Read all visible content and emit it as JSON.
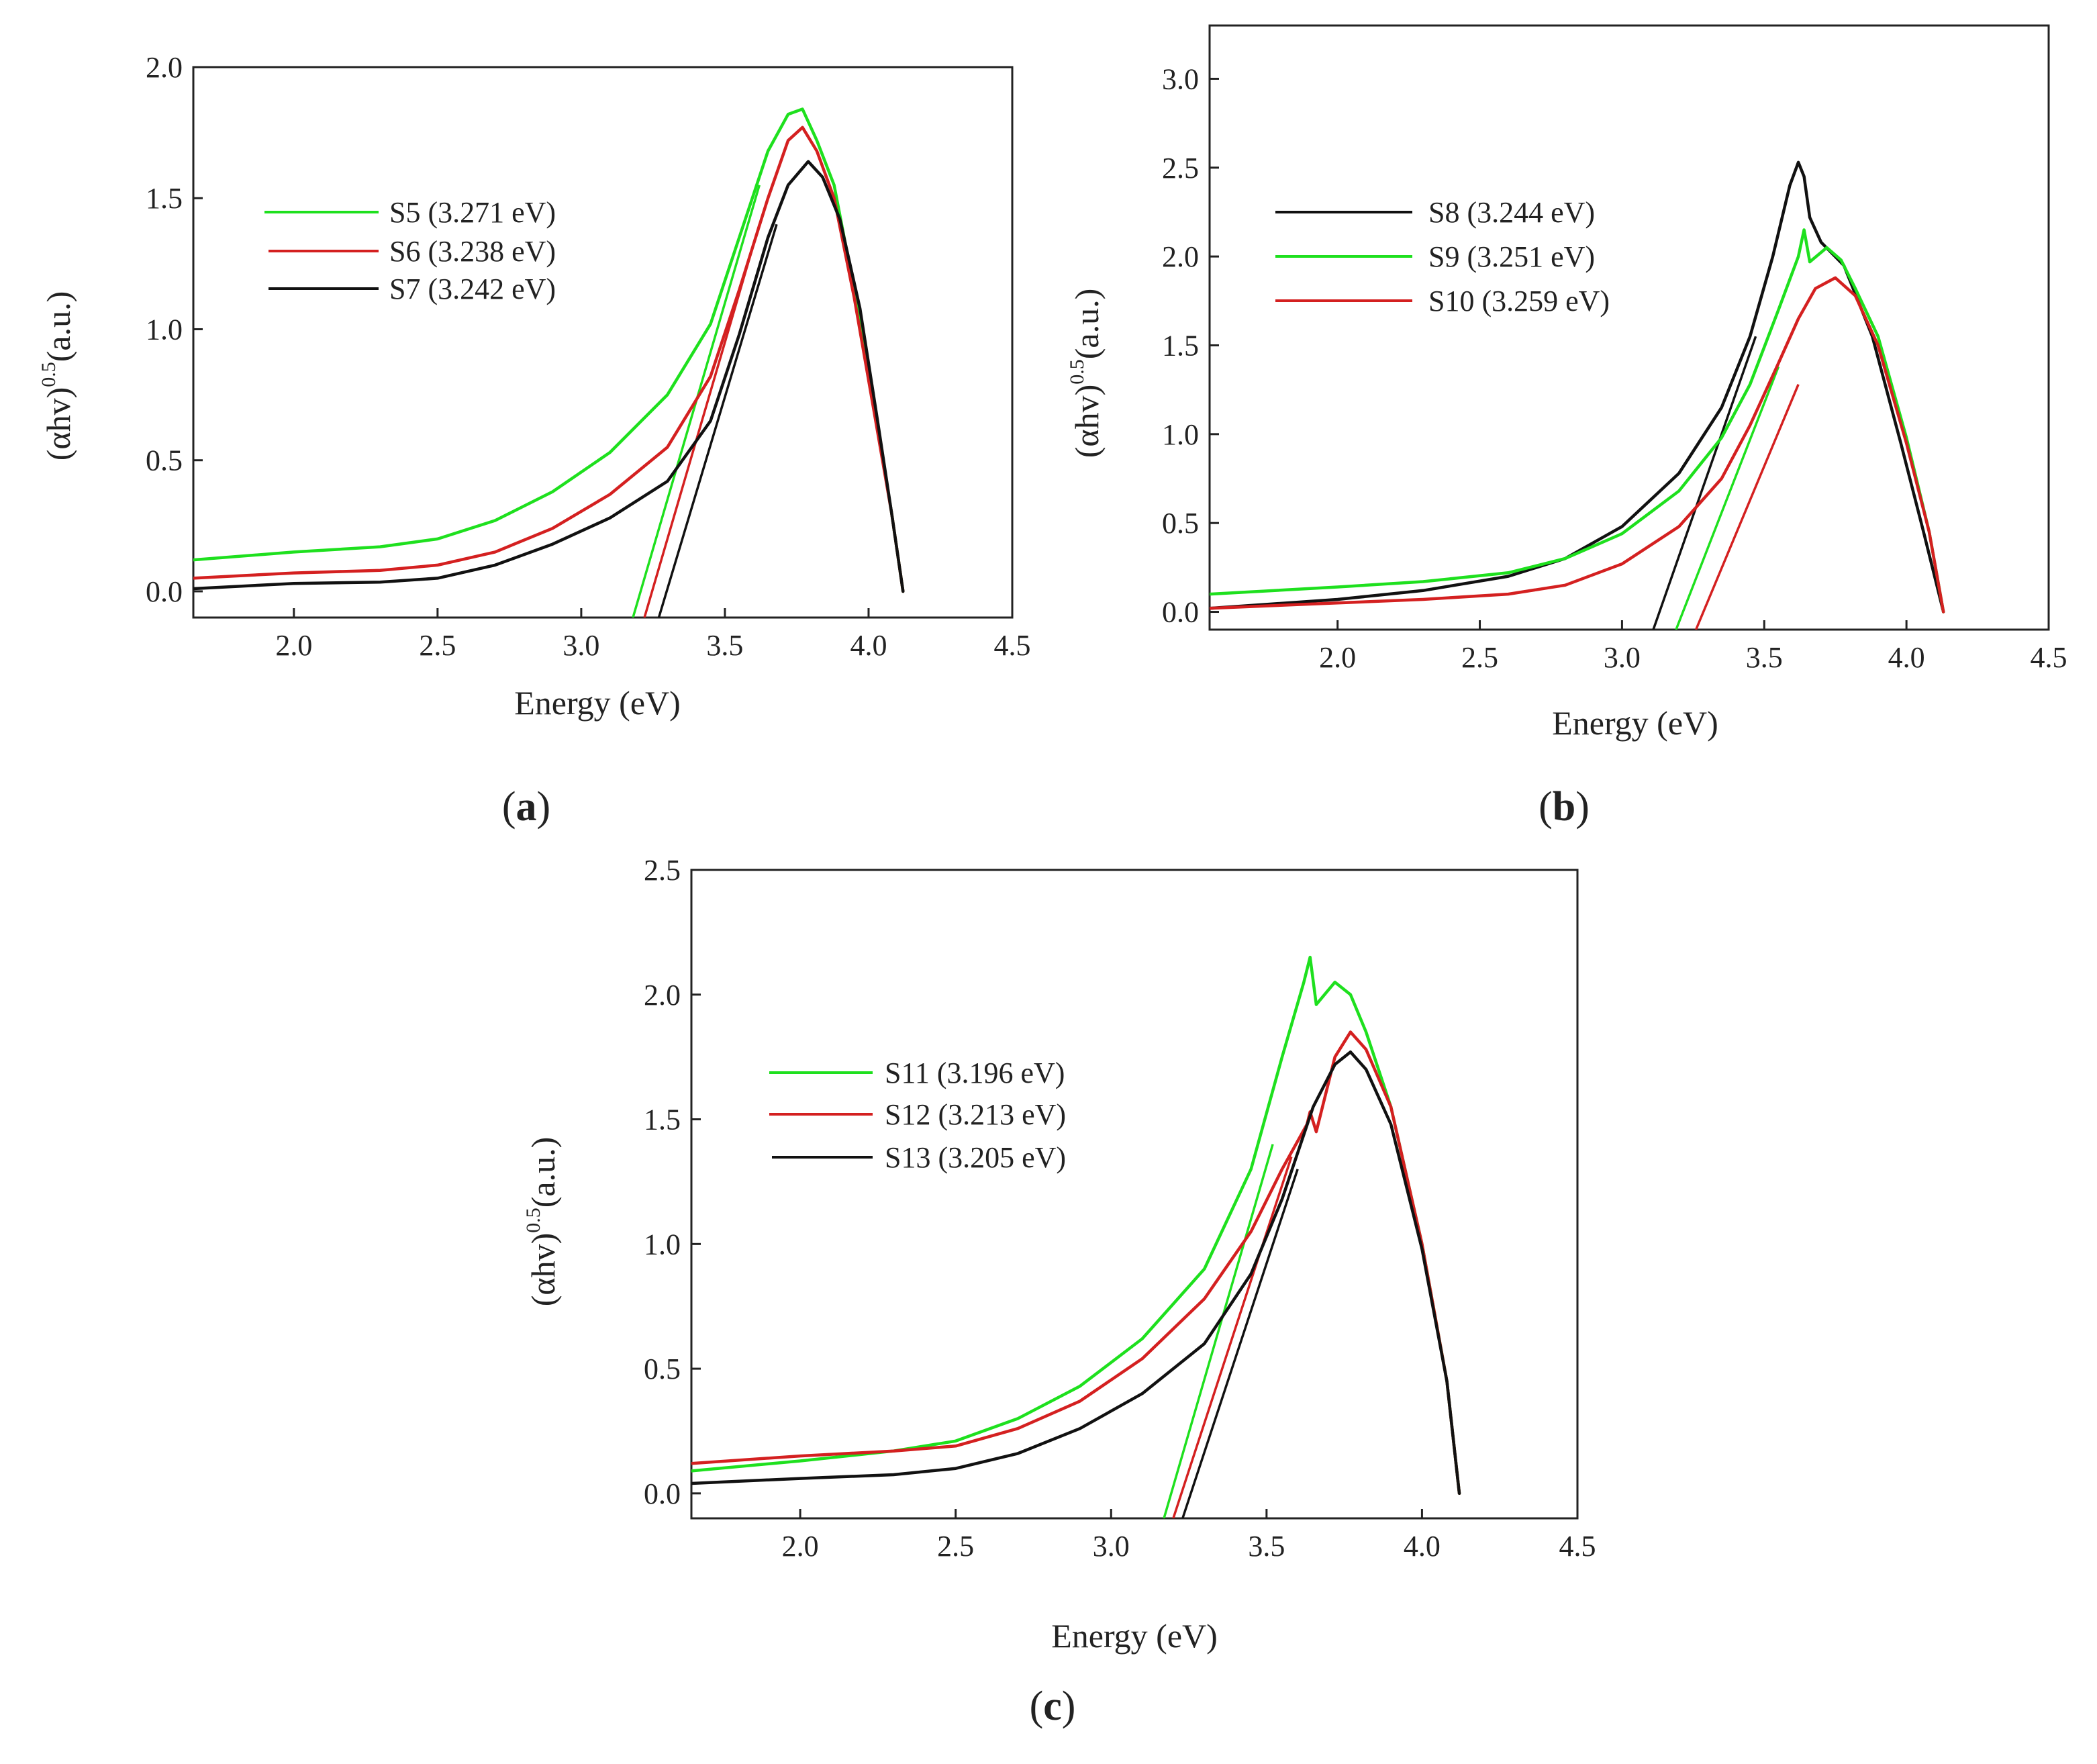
{
  "colors": {
    "green": "#1ee01e",
    "red": "#d42020",
    "black": "#111111",
    "axis": "#222222"
  },
  "chart_data": [
    {
      "id": "a",
      "type": "line",
      "panel_label": {
        "open": "(",
        "letter": "a",
        "close": ")"
      },
      "xlabel": "Energy (eV)",
      "ylabel": {
        "main": "(αhv)",
        "sup": "0.5",
        "tail": "(a.u.)"
      },
      "xlim": [
        1.65,
        4.5
      ],
      "ylim": [
        -0.1,
        2.0
      ],
      "xticks": [
        2.0,
        2.5,
        3.0,
        3.5,
        4.0,
        4.5
      ],
      "yticks": [
        0.0,
        0.5,
        1.0,
        1.5,
        2.0
      ],
      "legend_position": "upper-left",
      "series": [
        {
          "name": "S5 (3.271 eV)",
          "color": "#1ee01e",
          "x": [
            1.65,
            2.0,
            2.3,
            2.5,
            2.7,
            2.9,
            3.1,
            3.3,
            3.45,
            3.55,
            3.65,
            3.72,
            3.77,
            3.82,
            3.88,
            3.95,
            4.02,
            4.08,
            4.12
          ],
          "y": [
            0.12,
            0.15,
            0.17,
            0.2,
            0.27,
            0.38,
            0.53,
            0.75,
            1.02,
            1.35,
            1.68,
            1.82,
            1.84,
            1.72,
            1.55,
            1.15,
            0.7,
            0.3,
            0.0
          ]
        },
        {
          "name": "S6 (3.238 eV)",
          "color": "#d42020",
          "x": [
            1.65,
            2.0,
            2.3,
            2.5,
            2.7,
            2.9,
            3.1,
            3.3,
            3.45,
            3.55,
            3.65,
            3.72,
            3.77,
            3.82,
            3.88,
            3.95,
            4.02,
            4.08,
            4.12
          ],
          "y": [
            0.05,
            0.07,
            0.08,
            0.1,
            0.15,
            0.24,
            0.37,
            0.55,
            0.82,
            1.15,
            1.5,
            1.72,
            1.77,
            1.68,
            1.5,
            1.12,
            0.68,
            0.3,
            0.0
          ]
        },
        {
          "name": "S7 (3.242 eV)",
          "color": "#111111",
          "x": [
            1.65,
            2.0,
            2.3,
            2.5,
            2.7,
            2.9,
            3.1,
            3.3,
            3.45,
            3.55,
            3.65,
            3.72,
            3.79,
            3.84,
            3.9,
            3.97,
            4.03,
            4.08,
            4.12
          ],
          "y": [
            0.01,
            0.03,
            0.035,
            0.05,
            0.1,
            0.18,
            0.28,
            0.42,
            0.65,
            0.98,
            1.35,
            1.55,
            1.64,
            1.58,
            1.42,
            1.08,
            0.66,
            0.3,
            0.0
          ]
        }
      ],
      "fit_lines": [
        {
          "color": "#1ee01e",
          "x": [
            3.18,
            3.62
          ],
          "y": [
            -0.1,
            1.55
          ]
        },
        {
          "color": "#d42020",
          "x": [
            3.22,
            3.62
          ],
          "y": [
            -0.1,
            1.4
          ]
        },
        {
          "color": "#111111",
          "x": [
            3.27,
            3.68
          ],
          "y": [
            -0.1,
            1.4
          ]
        }
      ]
    },
    {
      "id": "b",
      "type": "line",
      "panel_label": {
        "open": "(",
        "letter": "b",
        "close": ")"
      },
      "xlabel": "Energy (eV)",
      "ylabel": {
        "main": "(αhv)",
        "sup": "0.5",
        "tail": "(a.u.)"
      },
      "xlim": [
        1.55,
        4.5
      ],
      "ylim": [
        -0.1,
        3.3
      ],
      "xticks": [
        2.0,
        2.5,
        3.0,
        3.5,
        4.0,
        4.5
      ],
      "yticks": [
        0.0,
        0.5,
        1.0,
        1.5,
        2.0,
        2.5,
        3.0
      ],
      "legend_position": "upper-left",
      "series": [
        {
          "name": "S8 (3.244 eV)",
          "color": "#111111",
          "x": [
            1.55,
            2.0,
            2.3,
            2.6,
            2.8,
            3.0,
            3.2,
            3.35,
            3.45,
            3.53,
            3.59,
            3.62,
            3.64,
            3.66,
            3.7,
            3.78,
            3.88,
            3.98,
            4.06,
            4.13
          ],
          "y": [
            0.02,
            0.07,
            0.12,
            0.2,
            0.3,
            0.48,
            0.78,
            1.15,
            1.55,
            2.0,
            2.4,
            2.53,
            2.45,
            2.22,
            2.08,
            1.95,
            1.55,
            0.95,
            0.45,
            0.0
          ]
        },
        {
          "name": "S9 (3.251 eV)",
          "color": "#1ee01e",
          "x": [
            1.55,
            2.0,
            2.3,
            2.6,
            2.8,
            3.0,
            3.2,
            3.35,
            3.45,
            3.55,
            3.62,
            3.64,
            3.66,
            3.72,
            3.77,
            3.82,
            3.9,
            4.0,
            4.08,
            4.13
          ],
          "y": [
            0.1,
            0.14,
            0.17,
            0.22,
            0.3,
            0.44,
            0.68,
            0.98,
            1.28,
            1.7,
            2.0,
            2.15,
            1.97,
            2.05,
            1.98,
            1.82,
            1.55,
            0.98,
            0.45,
            0.0
          ]
        },
        {
          "name": "S10 (3.259 eV)",
          "color": "#d42020",
          "x": [
            1.55,
            2.0,
            2.3,
            2.6,
            2.8,
            3.0,
            3.2,
            3.35,
            3.45,
            3.55,
            3.62,
            3.68,
            3.75,
            3.82,
            3.9,
            4.0,
            4.08,
            4.13
          ],
          "y": [
            0.02,
            0.05,
            0.07,
            0.1,
            0.15,
            0.27,
            0.48,
            0.75,
            1.05,
            1.4,
            1.65,
            1.82,
            1.88,
            1.78,
            1.5,
            0.95,
            0.45,
            0.0
          ]
        }
      ],
      "fit_lines": [
        {
          "color": "#111111",
          "x": [
            3.11,
            3.47
          ],
          "y": [
            -0.1,
            1.55
          ]
        },
        {
          "color": "#1ee01e",
          "x": [
            3.19,
            3.55
          ],
          "y": [
            -0.1,
            1.38
          ]
        },
        {
          "color": "#d42020",
          "x": [
            3.26,
            3.62
          ],
          "y": [
            -0.1,
            1.28
          ]
        }
      ]
    },
    {
      "id": "c",
      "type": "line",
      "panel_label": {
        "open": "(",
        "letter": "c",
        "close": ")"
      },
      "xlabel": "Energy (eV)",
      "ylabel": {
        "main": "(αhv)",
        "sup": "0.5",
        "tail": "(a.u.)"
      },
      "xlim": [
        1.65,
        4.5
      ],
      "ylim": [
        -0.1,
        2.5
      ],
      "xticks": [
        2.0,
        2.5,
        3.0,
        3.5,
        4.0,
        4.5
      ],
      "yticks": [
        0.0,
        0.5,
        1.0,
        1.5,
        2.0,
        2.5
      ],
      "legend_position": "upper-left",
      "series": [
        {
          "name": "S11 (3.196 eV)",
          "color": "#1ee01e",
          "x": [
            1.65,
            2.0,
            2.3,
            2.5,
            2.7,
            2.9,
            3.1,
            3.3,
            3.45,
            3.55,
            3.62,
            3.64,
            3.66,
            3.72,
            3.77,
            3.82,
            3.9,
            4.0,
            4.08,
            4.12
          ],
          "y": [
            0.09,
            0.13,
            0.17,
            0.21,
            0.3,
            0.43,
            0.62,
            0.9,
            1.3,
            1.75,
            2.05,
            2.15,
            1.96,
            2.05,
            2.0,
            1.85,
            1.55,
            1.0,
            0.45,
            0.0
          ]
        },
        {
          "name": "S12 (3.213 eV)",
          "color": "#d42020",
          "x": [
            1.65,
            2.0,
            2.3,
            2.5,
            2.7,
            2.9,
            3.1,
            3.3,
            3.45,
            3.55,
            3.63,
            3.64,
            3.66,
            3.72,
            3.77,
            3.82,
            3.9,
            4.0,
            4.08,
            4.12
          ],
          "y": [
            0.12,
            0.15,
            0.17,
            0.19,
            0.26,
            0.37,
            0.54,
            0.78,
            1.05,
            1.3,
            1.48,
            1.53,
            1.45,
            1.75,
            1.85,
            1.78,
            1.55,
            1.0,
            0.45,
            0.0
          ]
        },
        {
          "name": "S13 (3.205 eV)",
          "color": "#111111",
          "x": [
            1.65,
            2.0,
            2.3,
            2.5,
            2.7,
            2.9,
            3.1,
            3.3,
            3.45,
            3.55,
            3.65,
            3.72,
            3.77,
            3.82,
            3.9,
            4.0,
            4.08,
            4.12
          ],
          "y": [
            0.04,
            0.06,
            0.075,
            0.1,
            0.16,
            0.26,
            0.4,
            0.6,
            0.88,
            1.18,
            1.55,
            1.72,
            1.77,
            1.7,
            1.48,
            0.98,
            0.45,
            0.0
          ]
        }
      ],
      "fit_lines": [
        {
          "color": "#1ee01e",
          "x": [
            3.17,
            3.52
          ],
          "y": [
            -0.1,
            1.4
          ]
        },
        {
          "color": "#d42020",
          "x": [
            3.2,
            3.58
          ],
          "y": [
            -0.1,
            1.35
          ]
        },
        {
          "color": "#111111",
          "x": [
            3.23,
            3.6
          ],
          "y": [
            -0.1,
            1.3
          ]
        }
      ]
    }
  ]
}
